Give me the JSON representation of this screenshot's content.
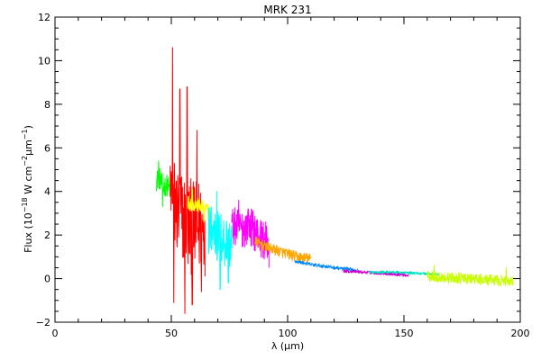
{
  "chart_data": {
    "type": "line",
    "title": "MRK 231",
    "xlabel": "λ (μm)",
    "ylabel": {
      "prefix": "Flux (10",
      "exp1": "−18",
      "mid": " W cm",
      "exp2": "−2",
      "unit": "μm",
      "exp3": "−1",
      "suffix": ")"
    },
    "xlim": [
      0,
      200
    ],
    "ylim": [
      -2,
      12
    ],
    "x_ticks": [
      0,
      50,
      100,
      150,
      200
    ],
    "x_tick_labels": [
      "0",
      "50",
      "100",
      "150",
      "200"
    ],
    "y_ticks": [
      -2,
      0,
      2,
      4,
      6,
      8,
      10,
      12
    ],
    "y_tick_labels": [
      "−2",
      "0",
      "2",
      "4",
      "6",
      "8",
      "10",
      "12"
    ],
    "grid": false,
    "series": [
      {
        "color": "#00ff00",
        "x": [
          43.5,
          45,
          46.5,
          48,
          49.5
        ],
        "y": [
          4.5,
          4.6,
          4.2,
          4.3,
          4.1
        ],
        "noise": 0.5,
        "spikes": [
          [
            44.5,
            5.4
          ],
          [
            46.2,
            3.3
          ]
        ]
      },
      {
        "color": "#ff0000",
        "x": [
          49.5,
          52,
          54.5,
          57,
          59.5,
          62,
          64.5
        ],
        "y": [
          4.0,
          3.2,
          2.8,
          2.5,
          2.3,
          2.4,
          2.3
        ],
        "noise": 2.2,
        "spikes": [
          [
            50.5,
            10.6
          ],
          [
            51,
            -1.1
          ],
          [
            53.7,
            8.7
          ],
          [
            55.8,
            -1.6
          ],
          [
            56.8,
            8.8
          ],
          [
            59,
            -1.2
          ],
          [
            61,
            6.8
          ],
          [
            63,
            -0.6
          ]
        ]
      },
      {
        "color": "#ffff00",
        "x": [
          57,
          60,
          63,
          66
        ],
        "y": [
          3.5,
          3.4,
          3.3,
          3.1
        ],
        "noise": 0.35,
        "spikes": [
          [
            59,
            4.1
          ],
          [
            64,
            2.6
          ]
        ]
      },
      {
        "color": "#00ffff",
        "x": [
          66,
          68,
          70,
          72,
          74,
          76
        ],
        "y": [
          2.3,
          2.2,
          1.9,
          1.8,
          1.7,
          1.6
        ],
        "noise": 1.3,
        "spikes": [
          [
            69.5,
            4.0
          ],
          [
            71,
            -0.5
          ],
          [
            74.5,
            -0.2
          ]
        ]
      },
      {
        "color": "#ff00ff",
        "x": [
          76,
          80,
          84,
          88,
          92
        ],
        "y": [
          2.4,
          2.3,
          2.4,
          1.9,
          1.6
        ],
        "noise": 0.9,
        "spikes": [
          [
            79,
            3.6
          ],
          [
            83,
            3.2
          ],
          [
            92,
            0.5
          ]
        ]
      },
      {
        "color": "#ffa500",
        "x": [
          86,
          92,
          98,
          104,
          110
        ],
        "y": [
          1.7,
          1.4,
          1.2,
          1.0,
          0.9
        ],
        "noise": 0.25,
        "spikes": []
      },
      {
        "color": "#0088ff",
        "x": [
          103,
          110,
          117,
          124,
          130
        ],
        "y": [
          0.8,
          0.65,
          0.55,
          0.45,
          0.4
        ],
        "noise": 0.08,
        "spikes": []
      },
      {
        "color": "#cc00cc",
        "x": [
          124,
          132,
          140,
          147,
          152
        ],
        "y": [
          0.35,
          0.3,
          0.25,
          0.2,
          0.15
        ],
        "noise": 0.07,
        "spikes": []
      },
      {
        "color": "#00e5c0",
        "x": [
          135,
          145,
          155,
          165
        ],
        "y": [
          0.3,
          0.3,
          0.25,
          0.2
        ],
        "noise": 0.06,
        "spikes": []
      },
      {
        "color": "#c8ff00",
        "x": [
          160,
          168,
          176,
          184,
          192,
          197
        ],
        "y": [
          0.1,
          0.05,
          0.0,
          -0.05,
          -0.1,
          -0.1
        ],
        "noise": 0.25,
        "spikes": [
          [
            163,
            0.6
          ],
          [
            194,
            0.5
          ]
        ]
      }
    ]
  }
}
